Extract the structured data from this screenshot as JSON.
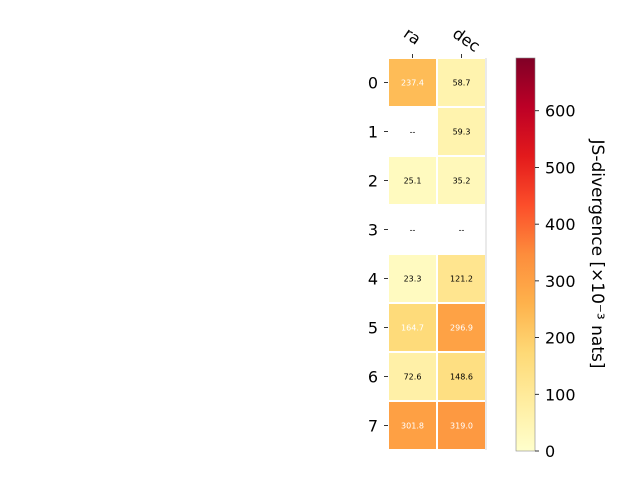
{
  "chart_data": {
    "type": "heatmap",
    "title": "",
    "x_categories": [
      "ra",
      "dec"
    ],
    "y_categories": [
      "0",
      "1",
      "2",
      "3",
      "4",
      "5",
      "6",
      "7"
    ],
    "values": [
      [
        237.4,
        58.7
      ],
      [
        null,
        59.3
      ],
      [
        25.1,
        35.2
      ],
      [
        null,
        null
      ],
      [
        23.3,
        121.2
      ],
      [
        164.7,
        296.9
      ],
      [
        72.6,
        148.6
      ],
      [
        301.8,
        319.0
      ]
    ],
    "cell_labels": [
      [
        "237.4",
        "58.7"
      ],
      [
        "--",
        "59.3"
      ],
      [
        "25.1",
        "35.2"
      ],
      [
        "--",
        "--"
      ],
      [
        "23.3",
        "121.2"
      ],
      [
        "164.7",
        "296.9"
      ],
      [
        "72.6",
        "148.6"
      ],
      [
        "301.8",
        "319.0"
      ]
    ],
    "colorbar": {
      "colormap": "YlOrRd",
      "range": [
        0,
        693
      ],
      "ticks": [
        "0",
        "100",
        "200",
        "300",
        "400",
        "500",
        "600"
      ],
      "label": "JS-divergence [×10⁻³ nats]"
    }
  }
}
